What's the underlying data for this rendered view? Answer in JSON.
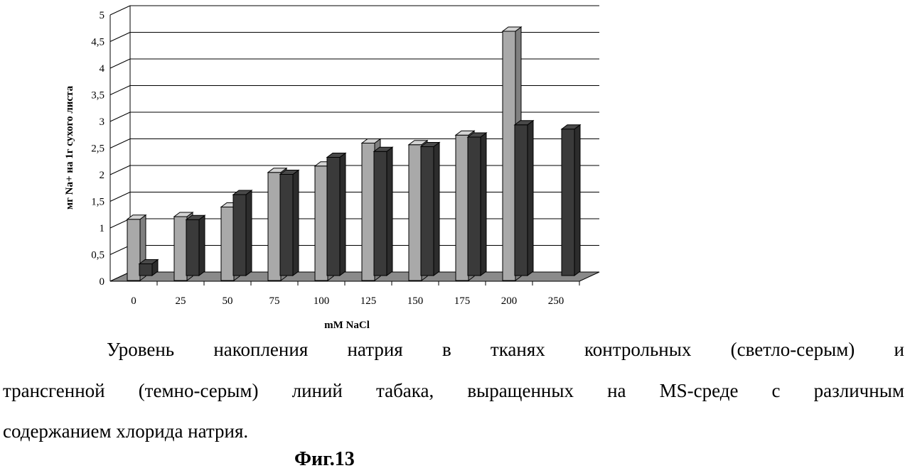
{
  "chart_data": {
    "type": "bar",
    "categories": [
      "0",
      "25",
      "50",
      "75",
      "100",
      "125",
      "150",
      "175",
      "200",
      "250"
    ],
    "series": [
      {
        "values": [
          1.15,
          1.2,
          1.38,
          2.03,
          2.15,
          2.58,
          2.55,
          2.73,
          4.68,
          null
        ]
      },
      {
        "values": [
          0.22,
          1.05,
          1.52,
          1.9,
          2.22,
          2.33,
          2.42,
          2.6,
          2.83,
          2.75
        ]
      }
    ],
    "colors": {
      "series_light": "#a9a9a9",
      "series_dark": "#3a3a3a",
      "floor": "#8a8a8a"
    },
    "y_ticks": [
      "0",
      "0,5",
      "1",
      "1,5",
      "2",
      "2,5",
      "3",
      "3,5",
      "4",
      "4,5",
      "5"
    ],
    "ylim": [
      0,
      5
    ],
    "xlabel": "mM NaCl",
    "ylabel": "мг Na+ на 1г сухого листа",
    "grid": true
  },
  "caption": {
    "line1_words": [
      "Уровень",
      "накопления",
      "натрия",
      "в",
      "тканях",
      "контрольных",
      "(светло-серым)",
      "и"
    ],
    "line2_words": [
      "трансгенной",
      "(темно-серым)",
      "линий",
      "табака,",
      "выращенных",
      "на",
      "MS-среде",
      "с",
      "различным"
    ],
    "line3": "содержанием хлорида натрия."
  },
  "figure_label": "Фиг.13"
}
